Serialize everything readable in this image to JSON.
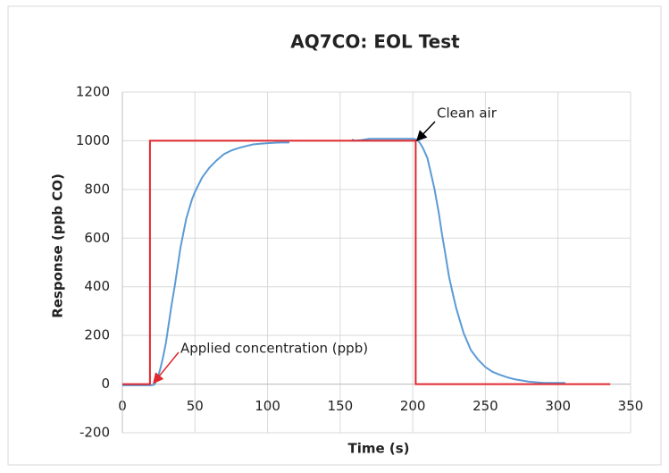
{
  "chart_data": {
    "type": "line",
    "title": "AQ7CO: EOL Test",
    "x_label": "Time (s)",
    "y_label": "Response  (ppb CO)",
    "xlim": [
      0,
      350
    ],
    "xticks": [
      0,
      50,
      100,
      150,
      200,
      250,
      300,
      350
    ],
    "ylim": [
      -200,
      1200
    ],
    "yticks": [
      -200,
      0,
      200,
      400,
      600,
      800,
      1000,
      1200
    ],
    "grid": true,
    "series": [
      {
        "color": "#5b9bd5",
        "x": [
          0,
          5,
          10,
          15,
          20,
          22,
          24,
          26,
          28,
          30,
          32,
          34,
          36,
          38,
          40,
          42,
          44,
          46,
          48,
          50,
          55,
          60,
          65,
          70,
          75,
          80,
          85,
          90,
          95,
          100,
          105,
          110,
          115,
          136,
          158,
          160,
          165,
          170,
          180,
          190,
          200,
          203,
          205,
          207,
          210,
          212,
          215,
          218,
          220,
          222,
          225,
          228,
          230,
          233,
          235,
          240,
          245,
          250,
          255,
          260,
          265,
          270,
          275,
          280,
          290,
          300,
          305
        ],
        "values": [
          -5,
          -5,
          -5,
          -5,
          -5,
          -2,
          20,
          60,
          110,
          170,
          250,
          330,
          400,
          480,
          560,
          620,
          680,
          720,
          760,
          790,
          850,
          890,
          920,
          945,
          960,
          970,
          978,
          985,
          988,
          990,
          992,
          993,
          993,
          null,
          1005,
          1000,
          1003,
          1008,
          1008,
          1008,
          1008,
          1005,
          990,
          970,
          930,
          880,
          800,
          700,
          620,
          550,
          440,
          360,
          310,
          250,
          210,
          140,
          100,
          70,
          50,
          38,
          28,
          20,
          15,
          10,
          5,
          5,
          5
        ]
      },
      {
        "color": "#e0282e",
        "x": [
          0,
          19,
          19,
          202,
          202,
          336
        ],
        "values": [
          0,
          0,
          1000,
          1000,
          0,
          0
        ]
      }
    ],
    "annotations": [
      {
        "text": "Clean air",
        "color": "#000000"
      },
      {
        "text": "Applied concentration (ppb)",
        "color": "#e0282e"
      }
    ]
  }
}
